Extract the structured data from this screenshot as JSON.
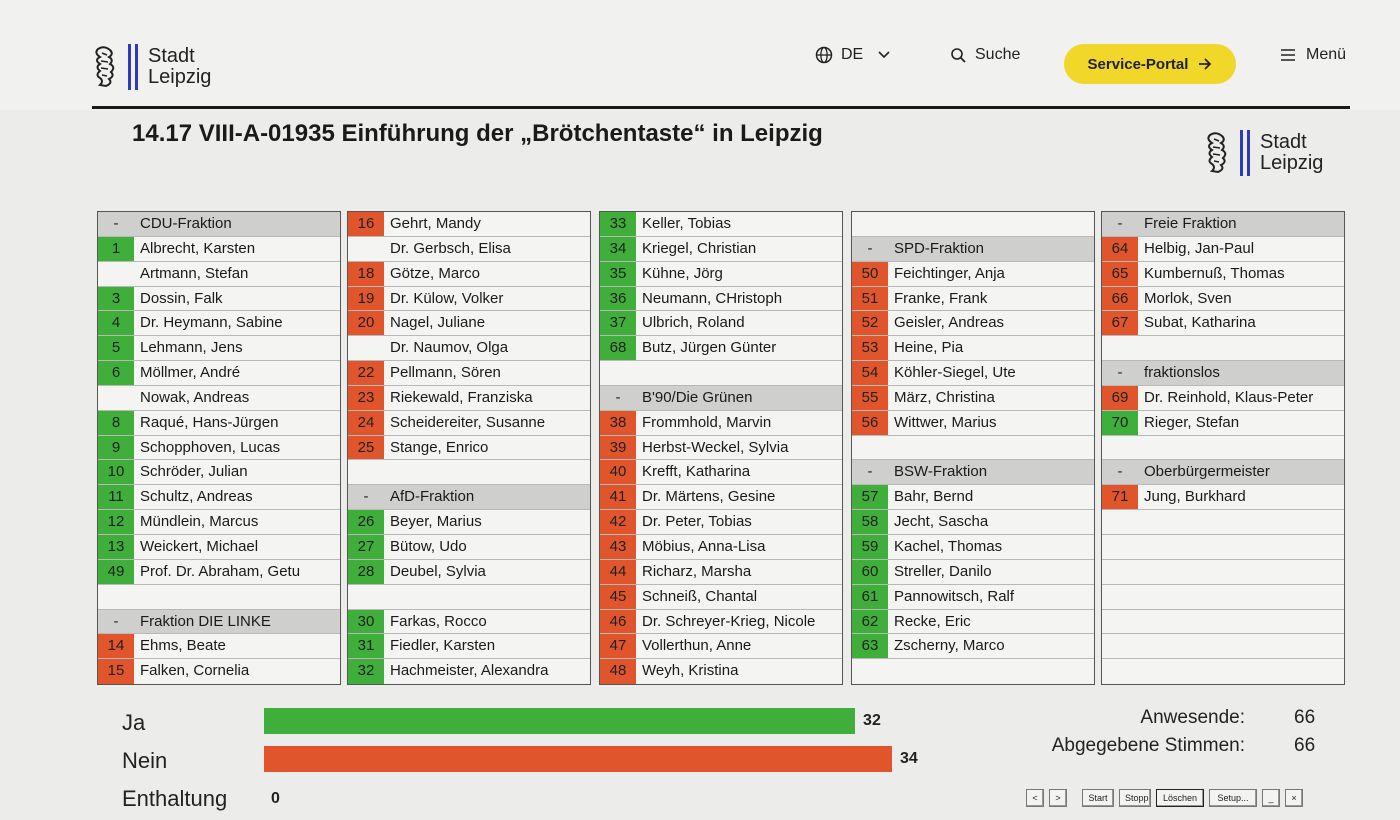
{
  "header": {
    "logo_line1": "Stadt",
    "logo_line2": "Leipzig",
    "lang_label": "DE",
    "search_label": "Suche",
    "service_label": "Service-Portal",
    "menu_label": "Menü"
  },
  "motion": {
    "title": "14.17 VIII-A-01935 Einführung der „Brötchentaste“ in Leipzig"
  },
  "colors": {
    "ja": "#3fae3a",
    "nein": "#e0552b",
    "accent": "#f0d729",
    "brand_blue": "#2d3bb5"
  },
  "columns": [
    [
      {
        "type": "party",
        "num": "-",
        "name": "CDU-Fraktion"
      },
      {
        "num": "1",
        "name": "Albrecht, Karsten",
        "vote": "ja"
      },
      {
        "num": "",
        "name": "Artmann, Stefan",
        "vote": ""
      },
      {
        "num": "3",
        "name": "Dossin, Falk",
        "vote": "ja"
      },
      {
        "num": "4",
        "name": "Dr. Heymann, Sabine",
        "vote": "ja"
      },
      {
        "num": "5",
        "name": "Lehmann, Jens",
        "vote": "ja"
      },
      {
        "num": "6",
        "name": "Möllmer, André",
        "vote": "ja"
      },
      {
        "num": "",
        "name": "Nowak, Andreas",
        "vote": ""
      },
      {
        "num": "8",
        "name": "Raqué, Hans-Jürgen",
        "vote": "ja"
      },
      {
        "num": "9",
        "name": "Schopphoven, Lucas",
        "vote": "ja"
      },
      {
        "num": "10",
        "name": "Schröder, Julian",
        "vote": "ja"
      },
      {
        "num": "11",
        "name": "Schultz, Andreas",
        "vote": "ja"
      },
      {
        "num": "12",
        "name": "Mündlein, Marcus",
        "vote": "ja"
      },
      {
        "num": "13",
        "name": "Weickert, Michael",
        "vote": "ja"
      },
      {
        "num": "49",
        "name": "Prof. Dr. Abraham, Getu",
        "vote": "ja"
      },
      {
        "type": "empty"
      },
      {
        "type": "party",
        "num": "-",
        "name": "Fraktion DIE LINKE"
      },
      {
        "num": "14",
        "name": "Ehms, Beate",
        "vote": "nein"
      },
      {
        "num": "15",
        "name": "Falken, Cornelia",
        "vote": "nein"
      }
    ],
    [
      {
        "num": "16",
        "name": "Gehrt, Mandy",
        "vote": "nein"
      },
      {
        "num": "",
        "name": "Dr. Gerbsch, Elisa",
        "vote": ""
      },
      {
        "num": "18",
        "name": "Götze, Marco",
        "vote": "nein"
      },
      {
        "num": "19",
        "name": "Dr. Külow, Volker",
        "vote": "nein"
      },
      {
        "num": "20",
        "name": "Nagel, Juliane",
        "vote": "nein"
      },
      {
        "num": "",
        "name": "Dr. Naumov, Olga",
        "vote": ""
      },
      {
        "num": "22",
        "name": "Pellmann, Sören",
        "vote": "nein"
      },
      {
        "num": "23",
        "name": "Riekewald, Franziska",
        "vote": "nein"
      },
      {
        "num": "24",
        "name": "Scheidereiter, Susanne",
        "vote": "nein"
      },
      {
        "num": "25",
        "name": "Stange, Enrico",
        "vote": "nein"
      },
      {
        "type": "empty"
      },
      {
        "type": "party",
        "num": "-",
        "name": "AfD-Fraktion"
      },
      {
        "num": "26",
        "name": "Beyer, Marius",
        "vote": "ja"
      },
      {
        "num": "27",
        "name": "Bütow, Udo",
        "vote": "ja"
      },
      {
        "num": "28",
        "name": "Deubel, Sylvia",
        "vote": "ja"
      },
      {
        "type": "empty"
      },
      {
        "num": "30",
        "name": "Farkas, Rocco",
        "vote": "ja"
      },
      {
        "num": "31",
        "name": "Fiedler, Karsten",
        "vote": "ja"
      },
      {
        "num": "32",
        "name": "Hachmeister, Alexandra",
        "vote": "ja"
      }
    ],
    [
      {
        "num": "33",
        "name": "Keller, Tobias",
        "vote": "ja"
      },
      {
        "num": "34",
        "name": "Kriegel, Christian",
        "vote": "ja"
      },
      {
        "num": "35",
        "name": "Kühne, Jörg",
        "vote": "ja"
      },
      {
        "num": "36",
        "name": "Neumann, CHristoph",
        "vote": "ja"
      },
      {
        "num": "37",
        "name": "Ulbrich, Roland",
        "vote": "ja"
      },
      {
        "num": "68",
        "name": "Butz, Jürgen Günter",
        "vote": "ja"
      },
      {
        "type": "empty"
      },
      {
        "type": "party",
        "num": "-",
        "name": "B'90/Die Grünen"
      },
      {
        "num": "38",
        "name": "Frommhold, Marvin",
        "vote": "nein"
      },
      {
        "num": "39",
        "name": "Herbst-Weckel, Sylvia",
        "vote": "nein"
      },
      {
        "num": "40",
        "name": "Krefft, Katharina",
        "vote": "nein"
      },
      {
        "num": "41",
        "name": "Dr. Märtens, Gesine",
        "vote": "nein"
      },
      {
        "num": "42",
        "name": "Dr. Peter, Tobias",
        "vote": "nein"
      },
      {
        "num": "43",
        "name": "Möbius, Anna-Lisa",
        "vote": "nein"
      },
      {
        "num": "44",
        "name": "Richarz, Marsha",
        "vote": "nein"
      },
      {
        "num": "45",
        "name": "Schneiß, Chantal",
        "vote": "nein"
      },
      {
        "num": "46",
        "name": "Dr. Schreyer-Krieg, Nicole",
        "vote": "nein"
      },
      {
        "num": "47",
        "name": "Vollerthun, Anne",
        "vote": "nein"
      },
      {
        "num": "48",
        "name": "Weyh, Kristina",
        "vote": "nein"
      }
    ],
    [
      {
        "type": "empty"
      },
      {
        "type": "party",
        "num": "-",
        "name": "SPD-Fraktion"
      },
      {
        "num": "50",
        "name": "Feichtinger, Anja",
        "vote": "nein"
      },
      {
        "num": "51",
        "name": "Franke, Frank",
        "vote": "nein"
      },
      {
        "num": "52",
        "name": "Geisler, Andreas",
        "vote": "nein"
      },
      {
        "num": "53",
        "name": "Heine, Pia",
        "vote": "nein"
      },
      {
        "num": "54",
        "name": "Köhler-Siegel, Ute",
        "vote": "nein"
      },
      {
        "num": "55",
        "name": "März, Christina",
        "vote": "nein"
      },
      {
        "num": "56",
        "name": "Wittwer, Marius",
        "vote": "nein"
      },
      {
        "type": "empty"
      },
      {
        "type": "party",
        "num": "-",
        "name": "BSW-Fraktion"
      },
      {
        "num": "57",
        "name": "Bahr, Bernd",
        "vote": "ja"
      },
      {
        "num": "58",
        "name": "Jecht, Sascha",
        "vote": "ja"
      },
      {
        "num": "59",
        "name": "Kachel, Thomas",
        "vote": "ja"
      },
      {
        "num": "60",
        "name": "Streller, Danilo",
        "vote": "ja"
      },
      {
        "num": "61",
        "name": "Pannowitsch, Ralf",
        "vote": "ja"
      },
      {
        "num": "62",
        "name": "Recke, Eric",
        "vote": "ja"
      },
      {
        "num": "63",
        "name": "Zscherny, Marco",
        "vote": "ja"
      },
      {
        "type": "empty"
      }
    ],
    [
      {
        "type": "party",
        "num": "-",
        "name": "Freie Fraktion"
      },
      {
        "num": "64",
        "name": "Helbig, Jan-Paul",
        "vote": "nein"
      },
      {
        "num": "65",
        "name": "Kumbernuß, Thomas",
        "vote": "nein"
      },
      {
        "num": "66",
        "name": "Morlok, Sven",
        "vote": "nein"
      },
      {
        "num": "67",
        "name": "Subat, Katharina",
        "vote": "nein"
      },
      {
        "type": "empty"
      },
      {
        "type": "party",
        "num": "-",
        "name": "fraktionslos"
      },
      {
        "num": "69",
        "name": "Dr. Reinhold, Klaus-Peter",
        "vote": "nein"
      },
      {
        "num": "70",
        "name": "Rieger, Stefan",
        "vote": "ja"
      },
      {
        "type": "empty"
      },
      {
        "type": "party",
        "num": "-",
        "name": "Oberbürgermeister"
      },
      {
        "num": "71",
        "name": "Jung, Burkhard",
        "vote": "nein"
      },
      {
        "type": "empty"
      },
      {
        "type": "empty"
      },
      {
        "type": "empty"
      },
      {
        "type": "empty"
      },
      {
        "type": "empty"
      },
      {
        "type": "empty"
      },
      {
        "type": "empty"
      }
    ]
  ],
  "results": {
    "ja_label": "Ja",
    "ja_value": "32",
    "nein_label": "Nein",
    "nein_value": "34",
    "enthaltung_label": "Enthaltung",
    "enthaltung_value": "0",
    "anwesende_label": "Anwesende:",
    "anwesende_value": "66",
    "stimmen_label": "Abgegebene Stimmen:",
    "stimmen_value": "66"
  },
  "controls": [
    "<",
    ">",
    "Start",
    "Stopp",
    "Löschen",
    "Setup...",
    "_",
    "×"
  ]
}
